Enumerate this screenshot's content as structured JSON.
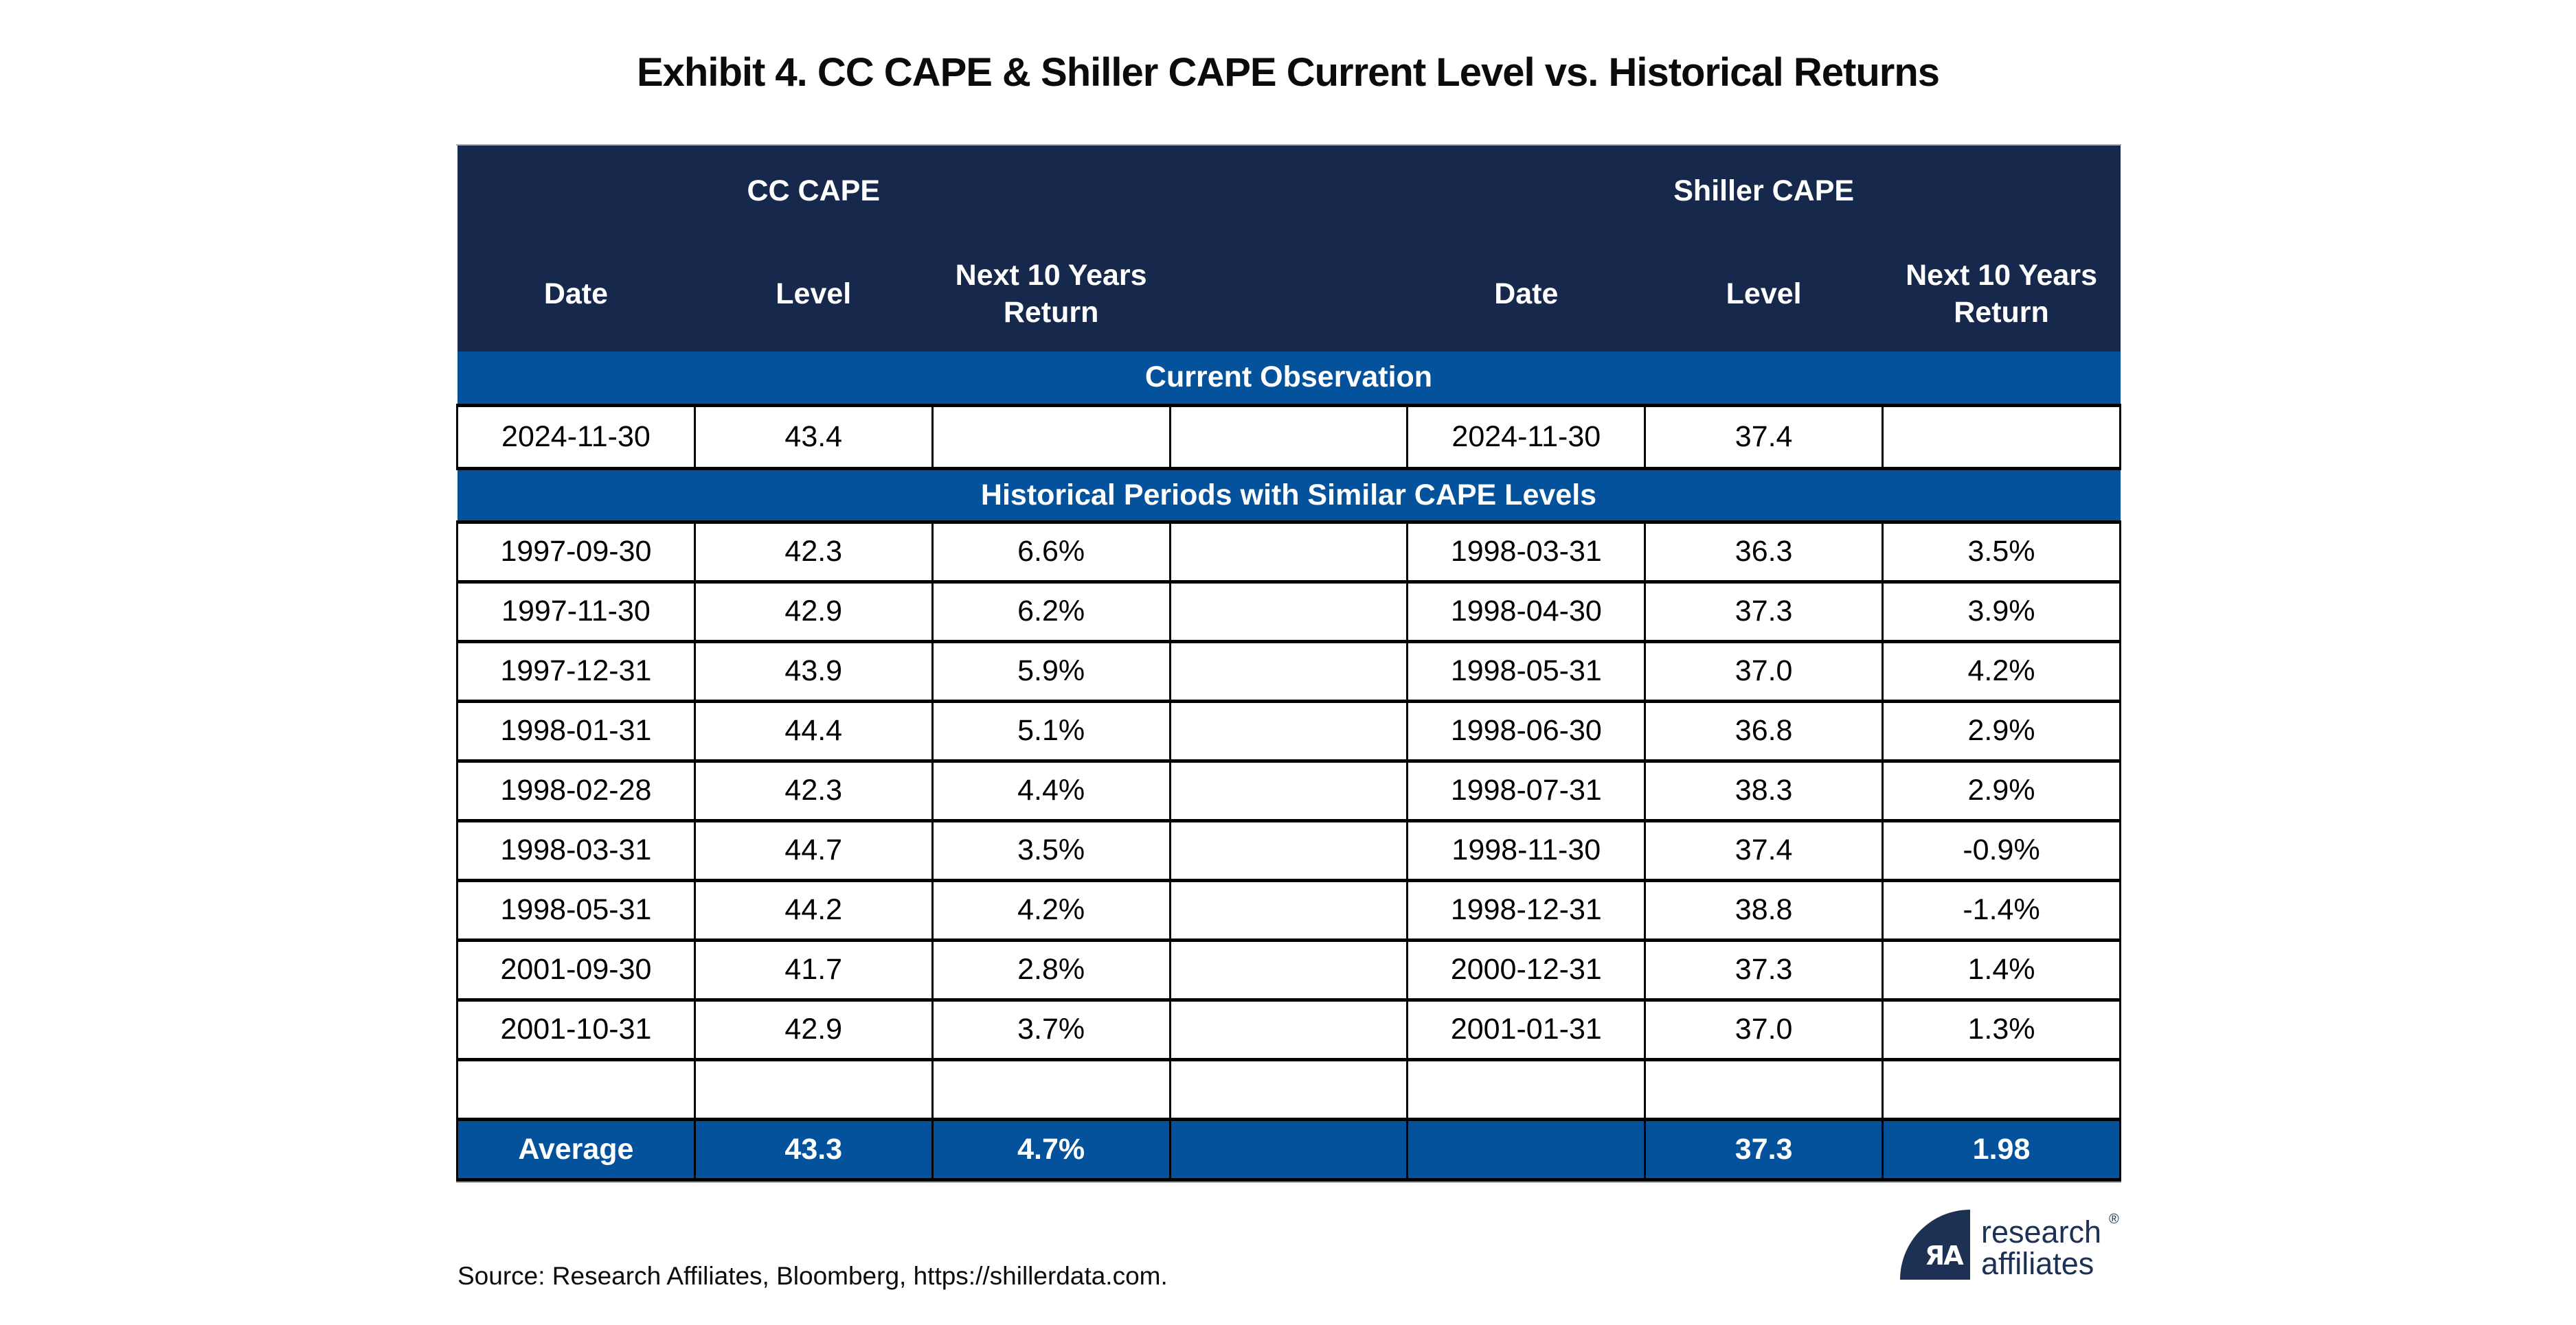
{
  "title": "Exhibit 4. CC CAPE & Shiller CAPE Current Level vs. Historical Returns",
  "colors": {
    "header_navy": "#16294C",
    "banner_blue": "#04529B",
    "logo_navy": "#1C3153",
    "border_black": "#000000"
  },
  "table": {
    "groups": {
      "cc": "CC CAPE",
      "shiller": "Shiller CAPE"
    },
    "column_headers": {
      "cc_date": "Date",
      "cc_level": "Level",
      "cc_return": "Next 10 Years\nReturn",
      "gap": "",
      "sh_date": "Date",
      "sh_level": "Level",
      "sh_return": "Next 10 Years\nReturn"
    },
    "sections": [
      {
        "type": "banner",
        "label": "Current Observation"
      },
      {
        "type": "rows",
        "tall": true,
        "rows": [
          [
            "2024-11-30",
            "43.4",
            "",
            "",
            "2024-11-30",
            "37.4",
            ""
          ]
        ]
      },
      {
        "type": "banner",
        "label": "Historical Periods with Similar CAPE Levels"
      },
      {
        "type": "rows",
        "tall": false,
        "rows": [
          [
            "1997-09-30",
            "42.3",
            "6.6%",
            "",
            "1998-03-31",
            "36.3",
            "3.5%"
          ],
          [
            "1997-11-30",
            "42.9",
            "6.2%",
            "",
            "1998-04-30",
            "37.3",
            "3.9%"
          ],
          [
            "1997-12-31",
            "43.9",
            "5.9%",
            "",
            "1998-05-31",
            "37.0",
            "4.2%"
          ],
          [
            "1998-01-31",
            "44.4",
            "5.1%",
            "",
            "1998-06-30",
            "36.8",
            "2.9%"
          ],
          [
            "1998-02-28",
            "42.3",
            "4.4%",
            "",
            "1998-07-31",
            "38.3",
            "2.9%"
          ],
          [
            "1998-03-31",
            "44.7",
            "3.5%",
            "",
            "1998-11-30",
            "37.4",
            "-0.9%"
          ],
          [
            "1998-05-31",
            "44.2",
            "4.2%",
            "",
            "1998-12-31",
            "38.8",
            "-1.4%"
          ],
          [
            "2001-09-30",
            "41.7",
            "2.8%",
            "",
            "2000-12-31",
            "37.3",
            "1.4%"
          ],
          [
            "2001-10-31",
            "42.9",
            "3.7%",
            "",
            "2001-01-31",
            "37.0",
            "1.3%"
          ],
          [
            "",
            "",
            "",
            "",
            "",
            "",
            ""
          ]
        ]
      },
      {
        "type": "average",
        "row": [
          "Average",
          "43.3",
          "4.7%",
          "",
          "",
          "37.3",
          "1.98"
        ]
      }
    ]
  },
  "footer": {
    "source": "Source: Research Affiliates, Bloomberg, https://shillerdata.com.",
    "logo": {
      "monogram": "ЯA",
      "line1": "research",
      "line2": "affiliates",
      "registered": "®"
    }
  },
  "chart_data": {
    "type": "table",
    "title": "Exhibit 4. CC CAPE & Shiller CAPE Current Level vs. Historical Returns",
    "groups": [
      "CC CAPE",
      "Shiller CAPE"
    ],
    "columns": [
      "Date",
      "Level",
      "Next 10 Years Return"
    ],
    "current_observation": {
      "cc": {
        "date": "2024-11-30",
        "level": 43.4,
        "next_10_years_return": null
      },
      "shiller": {
        "date": "2024-11-30",
        "level": 37.4,
        "next_10_years_return": null
      }
    },
    "historical_periods_with_similar_cape_levels": {
      "cc": [
        {
          "date": "1997-09-30",
          "level": 42.3,
          "next_10_years_return": "6.6%"
        },
        {
          "date": "1997-11-30",
          "level": 42.9,
          "next_10_years_return": "6.2%"
        },
        {
          "date": "1997-12-31",
          "level": 43.9,
          "next_10_years_return": "5.9%"
        },
        {
          "date": "1998-01-31",
          "level": 44.4,
          "next_10_years_return": "5.1%"
        },
        {
          "date": "1998-02-28",
          "level": 42.3,
          "next_10_years_return": "4.4%"
        },
        {
          "date": "1998-03-31",
          "level": 44.7,
          "next_10_years_return": "3.5%"
        },
        {
          "date": "1998-05-31",
          "level": 44.2,
          "next_10_years_return": "4.2%"
        },
        {
          "date": "2001-09-30",
          "level": 41.7,
          "next_10_years_return": "2.8%"
        },
        {
          "date": "2001-10-31",
          "level": 42.9,
          "next_10_years_return": "3.7%"
        }
      ],
      "shiller": [
        {
          "date": "1998-03-31",
          "level": 36.3,
          "next_10_years_return": "3.5%"
        },
        {
          "date": "1998-04-30",
          "level": 37.3,
          "next_10_years_return": "3.9%"
        },
        {
          "date": "1998-05-31",
          "level": 37.0,
          "next_10_years_return": "4.2%"
        },
        {
          "date": "1998-06-30",
          "level": 36.8,
          "next_10_years_return": "2.9%"
        },
        {
          "date": "1998-07-31",
          "level": 38.3,
          "next_10_years_return": "2.9%"
        },
        {
          "date": "1998-11-30",
          "level": 37.4,
          "next_10_years_return": "-0.9%"
        },
        {
          "date": "1998-12-31",
          "level": 38.8,
          "next_10_years_return": "-1.4%"
        },
        {
          "date": "2000-12-31",
          "level": 37.3,
          "next_10_years_return": "1.4%"
        },
        {
          "date": "2001-01-31",
          "level": 37.0,
          "next_10_years_return": "1.3%"
        }
      ]
    },
    "average": {
      "cc": {
        "level": 43.3,
        "next_10_years_return": "4.7%"
      },
      "shiller": {
        "level": 37.3,
        "next_10_years_return": "1.98"
      }
    }
  }
}
